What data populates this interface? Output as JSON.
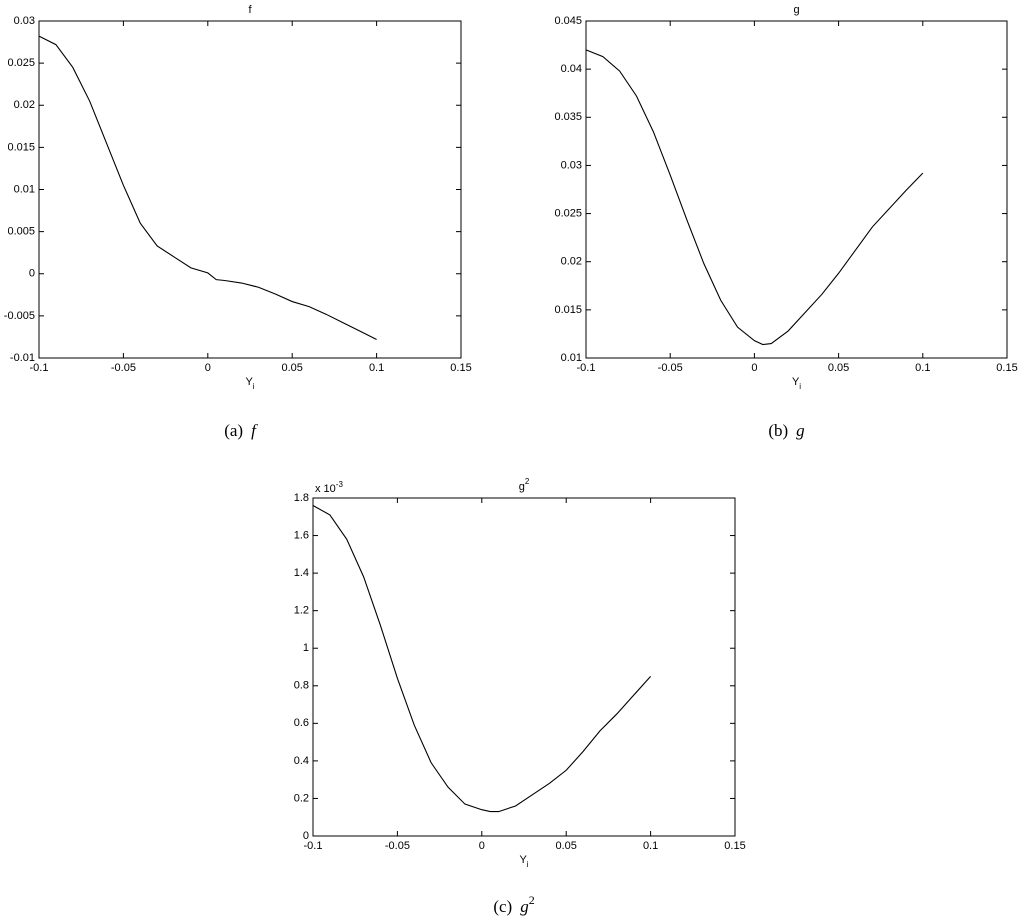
{
  "chart_data": [
    {
      "type": "line",
      "title": "f",
      "xlabel": "Y",
      "xlabel_subscript": "i",
      "caption_label": "(a)",
      "caption": "f",
      "x": [
        -0.1,
        -0.09,
        -0.08,
        -0.07,
        -0.06,
        -0.05,
        -0.04,
        -0.03,
        -0.02,
        -0.01,
        0,
        0.005,
        0.01,
        0.02,
        0.03,
        0.04,
        0.05,
        0.06,
        0.07,
        0.08,
        0.09,
        0.1
      ],
      "values": [
        0.0282,
        0.0272,
        0.0245,
        0.0205,
        0.0155,
        0.0105,
        0.006,
        0.0033,
        0.002,
        0.0007,
        0.0001,
        -0.0007,
        -0.0008,
        -0.0011,
        -0.0016,
        -0.0024,
        -0.0033,
        -0.0039,
        -0.0048,
        -0.0058,
        -0.0068,
        -0.0078
      ],
      "color": "#000000",
      "xlim": [
        -0.1,
        0.15
      ],
      "xticks": [
        -0.1,
        -0.05,
        0,
        0.05,
        0.1,
        0.15
      ],
      "ylim": [
        -0.01,
        0.03
      ],
      "yticks": [
        -0.01,
        -0.005,
        0,
        0.005,
        0.01,
        0.015,
        0.02,
        0.025,
        0.03
      ]
    },
    {
      "type": "line",
      "title": "g",
      "xlabel": "Y",
      "xlabel_subscript": "i",
      "caption_label": "(b)",
      "caption": "g",
      "x": [
        -0.1,
        -0.09,
        -0.08,
        -0.07,
        -0.06,
        -0.05,
        -0.04,
        -0.03,
        -0.02,
        -0.01,
        0,
        0.005,
        0.01,
        0.02,
        0.03,
        0.04,
        0.05,
        0.06,
        0.07,
        0.08,
        0.09,
        0.1
      ],
      "values": [
        0.042,
        0.0413,
        0.0398,
        0.0372,
        0.0335,
        0.029,
        0.0243,
        0.0198,
        0.016,
        0.0132,
        0.0118,
        0.0114,
        0.0115,
        0.0128,
        0.0147,
        0.0166,
        0.0188,
        0.0212,
        0.0236,
        0.0255,
        0.0274,
        0.0292
      ],
      "color": "#000000",
      "xlim": [
        -0.1,
        0.15
      ],
      "xticks": [
        -0.1,
        -0.05,
        0,
        0.05,
        0.1,
        0.15
      ],
      "ylim": [
        0.01,
        0.045
      ],
      "yticks": [
        0.01,
        0.015,
        0.02,
        0.025,
        0.03,
        0.035,
        0.04,
        0.045
      ]
    },
    {
      "type": "line",
      "title": "g",
      "title_superscript": "2",
      "xlabel": "Y",
      "xlabel_subscript": "i",
      "caption_label": "(c)",
      "caption": "g",
      "caption_superscript": "2",
      "y_multiplier": "x 10",
      "y_multiplier_exponent": "-3",
      "x": [
        -0.1,
        -0.09,
        -0.08,
        -0.07,
        -0.06,
        -0.05,
        -0.04,
        -0.03,
        -0.02,
        -0.01,
        0,
        0.005,
        0.01,
        0.02,
        0.03,
        0.04,
        0.05,
        0.06,
        0.07,
        0.08,
        0.09,
        0.1
      ],
      "values": [
        1.76,
        1.71,
        1.58,
        1.38,
        1.12,
        0.84,
        0.59,
        0.39,
        0.26,
        0.17,
        0.14,
        0.13,
        0.13,
        0.16,
        0.22,
        0.28,
        0.35,
        0.45,
        0.56,
        0.65,
        0.75,
        0.85
      ],
      "color": "#000000",
      "xlim": [
        -0.1,
        0.15
      ],
      "xticks": [
        -0.1,
        -0.05,
        0,
        0.05,
        0.1,
        0.15
      ],
      "ylim": [
        0,
        1.8
      ],
      "yticks": [
        0,
        0.2,
        0.4,
        0.6,
        0.8,
        1,
        1.2,
        1.4,
        1.6,
        1.8
      ]
    }
  ]
}
